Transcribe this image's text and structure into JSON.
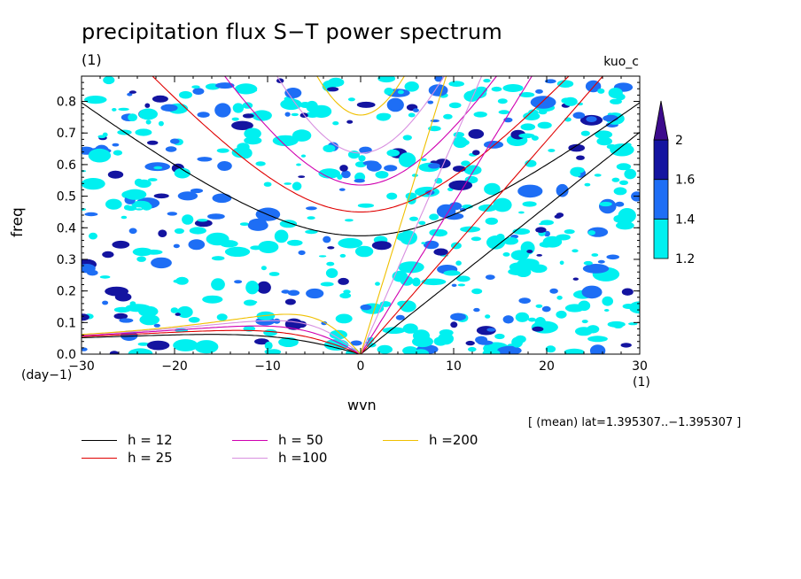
{
  "header": {
    "title": "precipitation flux S−T power spectrum",
    "title_unit": "(1)",
    "model_name": "kuo_c"
  },
  "footer": {
    "mean_note": "[ (mean) lat=1.395307..−1.395307 ]"
  },
  "chart_data": {
    "type": "heatmap",
    "title": "precipitation flux S−T power spectrum",
    "xlabel": "wvn",
    "ylabel": "freq",
    "x_unit": "(1)",
    "y_unit": "(day−1)",
    "xlim": [
      -30,
      30
    ],
    "ylim": [
      0,
      0.88
    ],
    "x_ticks": [
      -30,
      -20,
      -10,
      0,
      10,
      20,
      30
    ],
    "x_tick_labels": [
      "−30",
      "−20",
      "−10",
      "0",
      "10",
      "20",
      "30"
    ],
    "y_ticks": [
      0,
      0.1,
      0.2,
      0.3,
      0.4,
      0.5,
      0.6,
      0.7,
      0.8
    ],
    "y_tick_labels": [
      "0.0",
      "0.1",
      "0.2",
      "0.3",
      "0.4",
      "0.5",
      "0.6",
      "0.7",
      "0.8"
    ],
    "colorbar": {
      "levels": [
        1.2,
        1.4,
        1.6,
        2
      ],
      "labels": [
        "1.2",
        "1.4",
        "1.6",
        "2"
      ],
      "colors": [
        "#00f0f0",
        "#1e6ef5",
        "#1414a0",
        "#3c0a8c"
      ]
    },
    "dispersion_curves": [
      {
        "label": "h = 12",
        "h": 12,
        "color": "#000000"
      },
      {
        "label": "h = 25",
        "h": 25,
        "color": "#e00000"
      },
      {
        "label": "h = 50",
        "h": 50,
        "color": "#d000b0"
      },
      {
        "label": "h =100",
        "h": 100,
        "color": "#d890e0"
      },
      {
        "label": "h =200",
        "h": 200,
        "color": "#f0c000"
      }
    ],
    "grid": false,
    "legend_position": "bottom-left"
  }
}
